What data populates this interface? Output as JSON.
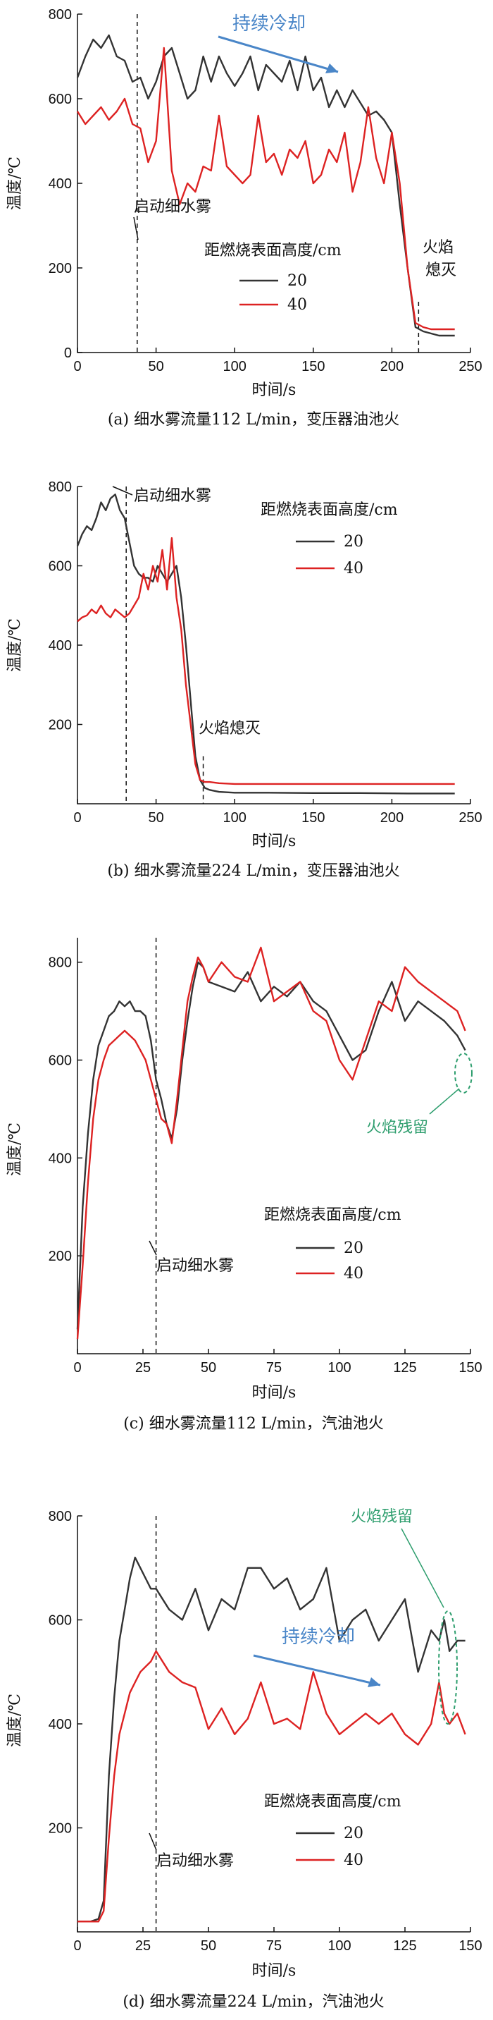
{
  "chart_data": [
    {
      "type": "line",
      "caption": "(a) 细水雾流量112 L/min，变压器油池火",
      "xlabel": "时间/s",
      "ylabel": "温度/℃",
      "xlim": [
        0,
        250
      ],
      "ylim": [
        0,
        800
      ],
      "xticks": [
        "0",
        "50",
        "100",
        "150",
        "200",
        "250"
      ],
      "yticks": [
        "0",
        "200",
        "400",
        "600",
        "800"
      ],
      "legend_title": "距燃烧表面高度/cm",
      "series": [
        {
          "name": "20",
          "color": "#333333",
          "x": [
            0,
            5,
            10,
            15,
            20,
            25,
            30,
            35,
            40,
            45,
            50,
            55,
            60,
            65,
            70,
            75,
            80,
            85,
            90,
            95,
            100,
            105,
            110,
            115,
            120,
            125,
            130,
            135,
            140,
            145,
            150,
            155,
            160,
            165,
            170,
            175,
            180,
            185,
            190,
            195,
            200,
            205,
            210,
            215,
            220,
            225,
            230,
            235,
            240
          ],
          "y": [
            650,
            700,
            740,
            720,
            750,
            700,
            690,
            640,
            650,
            600,
            640,
            700,
            720,
            660,
            600,
            620,
            700,
            640,
            700,
            660,
            630,
            660,
            700,
            620,
            680,
            660,
            640,
            690,
            620,
            700,
            620,
            650,
            580,
            620,
            580,
            620,
            590,
            560,
            570,
            550,
            520,
            350,
            200,
            60,
            50,
            45,
            40,
            40,
            40
          ]
        },
        {
          "name": "40",
          "color": "#dd2222",
          "x": [
            0,
            5,
            10,
            15,
            20,
            25,
            30,
            35,
            40,
            45,
            50,
            55,
            60,
            65,
            70,
            75,
            80,
            85,
            90,
            95,
            100,
            105,
            110,
            115,
            120,
            125,
            130,
            135,
            140,
            145,
            150,
            155,
            160,
            165,
            170,
            175,
            180,
            185,
            190,
            195,
            200,
            205,
            210,
            215,
            220,
            225,
            230,
            235,
            240
          ],
          "y": [
            570,
            540,
            560,
            580,
            550,
            570,
            600,
            540,
            530,
            450,
            500,
            720,
            430,
            350,
            400,
            380,
            440,
            430,
            560,
            440,
            420,
            400,
            420,
            560,
            450,
            470,
            420,
            480,
            460,
            500,
            400,
            420,
            480,
            450,
            520,
            380,
            450,
            580,
            460,
            400,
            520,
            400,
            200,
            70,
            60,
            55,
            55,
            55,
            55
          ]
        }
      ],
      "annotations": [
        {
          "text": "持续冷却",
          "color": "#4a86c8"
        },
        {
          "text": "启动细水雾",
          "color": "#111111"
        },
        {
          "text": "火焰",
          "color": "#111111"
        },
        {
          "text": "熄灭",
          "color": "#111111"
        }
      ],
      "vline_x": 38,
      "vline2_x": 217
    },
    {
      "type": "line",
      "caption": "(b) 细水雾流量224 L/min，变压器油池火",
      "xlabel": "时间/s",
      "ylabel": "温度/℃",
      "xlim": [
        0,
        250
      ],
      "ylim": [
        0,
        800
      ],
      "xticks": [
        "0",
        "50",
        "100",
        "150",
        "200",
        "250"
      ],
      "yticks": [
        "200",
        "400",
        "600",
        "800"
      ],
      "legend_title": "距燃烧表面高度/cm",
      "series": [
        {
          "name": "20",
          "color": "#333333",
          "x": [
            0,
            3,
            6,
            9,
            12,
            15,
            18,
            21,
            24,
            27,
            30,
            33,
            36,
            39,
            42,
            45,
            48,
            51,
            54,
            57,
            60,
            63,
            66,
            69,
            72,
            75,
            78,
            81,
            84,
            90,
            100,
            120,
            150,
            180,
            210,
            240
          ],
          "y": [
            650,
            680,
            700,
            690,
            720,
            760,
            740,
            770,
            780,
            740,
            720,
            660,
            600,
            580,
            570,
            570,
            560,
            600,
            580,
            560,
            580,
            600,
            520,
            400,
            260,
            120,
            60,
            40,
            35,
            30,
            28,
            28,
            27,
            27,
            26,
            26
          ]
        },
        {
          "name": "40",
          "color": "#dd2222",
          "x": [
            0,
            3,
            6,
            9,
            12,
            15,
            18,
            21,
            24,
            27,
            30,
            33,
            36,
            39,
            42,
            45,
            48,
            51,
            54,
            57,
            60,
            63,
            66,
            69,
            72,
            75,
            78,
            81,
            84,
            90,
            100,
            120,
            150,
            180,
            210,
            240
          ],
          "y": [
            460,
            470,
            475,
            490,
            480,
            500,
            480,
            470,
            490,
            480,
            470,
            480,
            500,
            520,
            580,
            540,
            600,
            560,
            640,
            540,
            670,
            520,
            440,
            300,
            200,
            100,
            60,
            55,
            55,
            52,
            50,
            50,
            50,
            50,
            50,
            50
          ]
        }
      ],
      "annotations": [
        {
          "text": "启动细水雾",
          "color": "#111111"
        },
        {
          "text": "火焰熄灭",
          "color": "#111111"
        }
      ],
      "vline_x": 31,
      "vline2_x": 80
    },
    {
      "type": "line",
      "caption": "(c) 细水雾流量112 L/min，汽油池火",
      "xlabel": "时间/s",
      "ylabel": "温度/℃",
      "xlim": [
        0,
        150
      ],
      "ylim": [
        0,
        850
      ],
      "xticks": [
        "0",
        "25",
        "50",
        "75",
        "100",
        "125",
        "150"
      ],
      "yticks": [
        "200",
        "400",
        "600",
        "800"
      ],
      "legend_title": "距燃烧表面高度/cm",
      "series": [
        {
          "name": "20",
          "color": "#333333",
          "x": [
            0,
            2,
            4,
            6,
            8,
            10,
            12,
            14,
            16,
            18,
            20,
            22,
            24,
            26,
            28,
            30,
            32,
            34,
            36,
            38,
            40,
            42,
            44,
            46,
            48,
            50,
            55,
            60,
            65,
            70,
            75,
            80,
            85,
            90,
            95,
            100,
            105,
            110,
            115,
            120,
            125,
            130,
            135,
            140,
            145,
            148
          ],
          "y": [
            50,
            300,
            450,
            560,
            630,
            660,
            690,
            700,
            720,
            710,
            720,
            700,
            700,
            690,
            640,
            560,
            520,
            470,
            440,
            500,
            600,
            680,
            750,
            800,
            790,
            760,
            750,
            740,
            780,
            720,
            750,
            730,
            760,
            720,
            700,
            650,
            600,
            620,
            700,
            760,
            680,
            720,
            700,
            680,
            650,
            620
          ]
        },
        {
          "name": "40",
          "color": "#dd2222",
          "x": [
            0,
            2,
            4,
            6,
            8,
            10,
            12,
            14,
            16,
            18,
            20,
            22,
            24,
            26,
            28,
            30,
            32,
            34,
            36,
            38,
            40,
            42,
            44,
            46,
            48,
            50,
            55,
            60,
            65,
            70,
            75,
            80,
            85,
            90,
            95,
            100,
            105,
            110,
            115,
            120,
            125,
            130,
            135,
            140,
            145,
            148
          ],
          "y": [
            30,
            180,
            350,
            480,
            560,
            600,
            630,
            640,
            650,
            660,
            650,
            640,
            620,
            600,
            560,
            520,
            480,
            470,
            430,
            520,
            620,
            720,
            770,
            810,
            790,
            760,
            800,
            770,
            760,
            830,
            720,
            740,
            760,
            700,
            680,
            600,
            560,
            640,
            720,
            700,
            790,
            760,
            740,
            720,
            700,
            660
          ]
        }
      ],
      "annotations": [
        {
          "text": "启动细水雾",
          "color": "#111111"
        },
        {
          "text": "火焰残留",
          "color": "#2e9e6e"
        }
      ],
      "vline_x": 30
    },
    {
      "type": "line",
      "caption": "(d) 细水雾流量224 L/min，汽油池火",
      "xlabel": "时间/s",
      "ylabel": "温度/℃",
      "xlim": [
        0,
        150
      ],
      "ylim": [
        0,
        800
      ],
      "xticks": [
        "0",
        "25",
        "50",
        "75",
        "100",
        "125",
        "150"
      ],
      "yticks": [
        "200",
        "400",
        "600",
        "800"
      ],
      "legend_title": "距燃烧表面高度/cm",
      "series": [
        {
          "name": "20",
          "color": "#333333",
          "x": [
            0,
            5,
            8,
            10,
            12,
            14,
            16,
            18,
            20,
            22,
            24,
            26,
            28,
            30,
            35,
            40,
            45,
            50,
            55,
            60,
            65,
            70,
            75,
            80,
            85,
            90,
            95,
            100,
            105,
            110,
            115,
            120,
            125,
            130,
            135,
            138,
            140,
            142,
            145,
            148
          ],
          "y": [
            20,
            20,
            25,
            60,
            300,
            450,
            560,
            620,
            680,
            720,
            700,
            680,
            660,
            660,
            620,
            600,
            660,
            580,
            640,
            620,
            700,
            700,
            660,
            680,
            620,
            640,
            700,
            560,
            600,
            620,
            560,
            600,
            640,
            500,
            580,
            560,
            600,
            540,
            560,
            560
          ]
        },
        {
          "name": "40",
          "color": "#dd2222",
          "x": [
            0,
            5,
            8,
            10,
            12,
            14,
            16,
            18,
            20,
            22,
            24,
            26,
            28,
            30,
            35,
            40,
            45,
            50,
            55,
            60,
            65,
            70,
            75,
            80,
            85,
            90,
            95,
            100,
            105,
            110,
            115,
            120,
            125,
            130,
            135,
            138,
            140,
            142,
            145,
            148
          ],
          "y": [
            20,
            20,
            20,
            40,
            180,
            300,
            380,
            420,
            460,
            480,
            500,
            510,
            520,
            540,
            500,
            480,
            470,
            390,
            430,
            380,
            410,
            480,
            400,
            410,
            390,
            500,
            420,
            380,
            400,
            420,
            400,
            420,
            380,
            360,
            400,
            480,
            420,
            400,
            420,
            380
          ]
        }
      ],
      "annotations": [
        {
          "text": "持续冷却",
          "color": "#4a86c8"
        },
        {
          "text": "火焰残留",
          "color": "#2e9e6e"
        },
        {
          "text": "启动细水雾",
          "color": "#111111"
        }
      ],
      "vline_x": 30
    }
  ]
}
